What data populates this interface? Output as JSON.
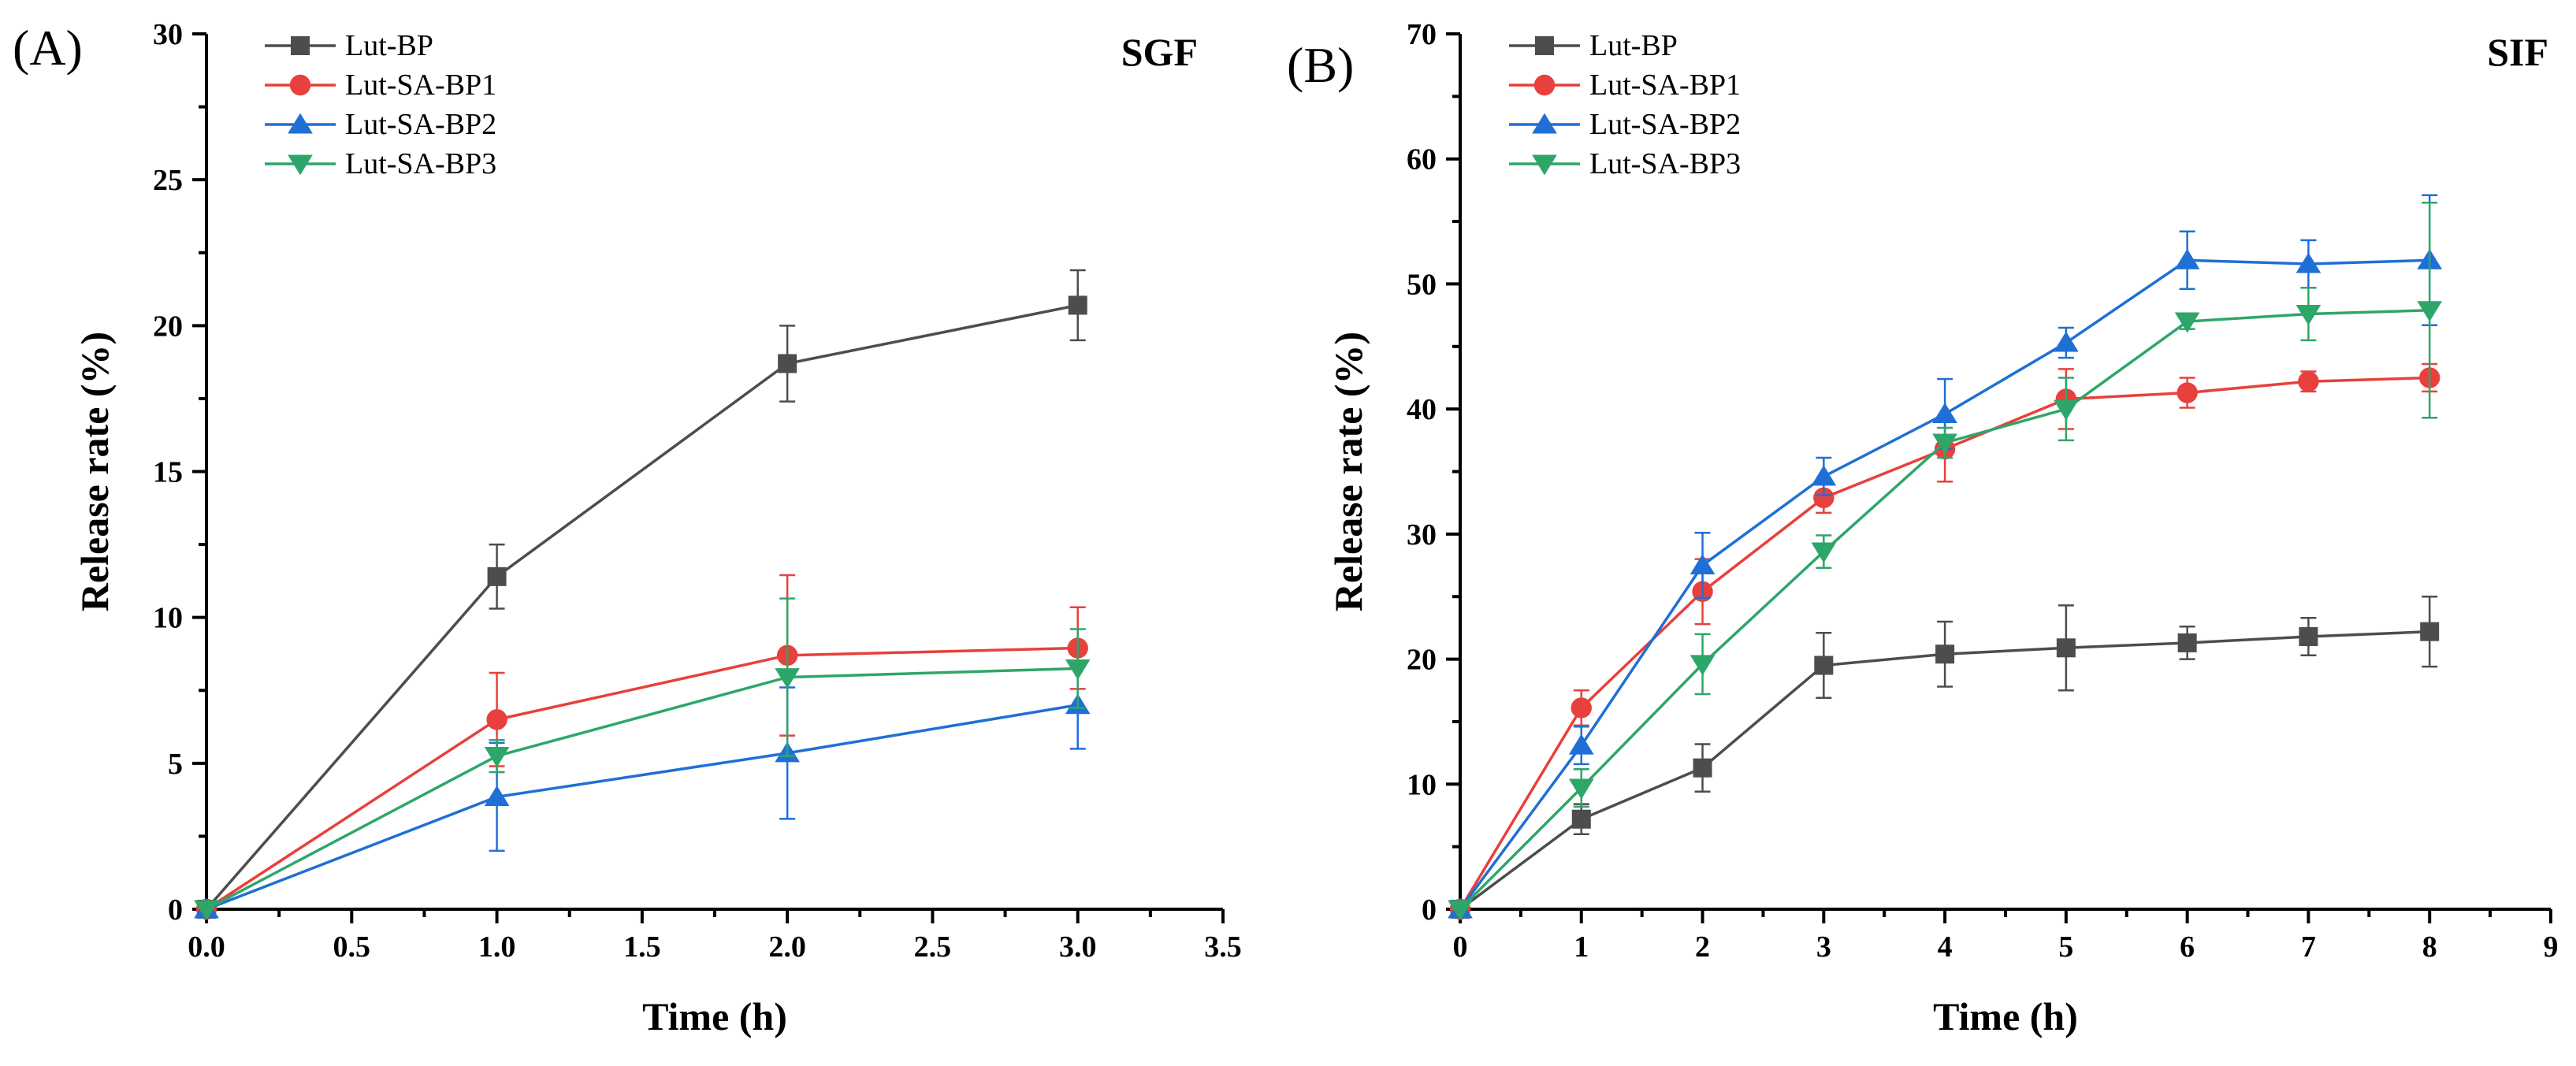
{
  "chart_data": [
    {
      "type": "line",
      "panel_label": "(A)",
      "condition": "SGF",
      "xlabel": "Time (h)",
      "ylabel": "Release rate (%)",
      "xlim": [
        0,
        3.5
      ],
      "ylim": [
        0,
        30
      ],
      "x_ticks": [
        "0.0",
        "0.5",
        "1.0",
        "1.5",
        "2.0",
        "2.5",
        "3.0",
        "3.5"
      ],
      "y_ticks": [
        "0",
        "5",
        "10",
        "15",
        "20",
        "25",
        "30"
      ],
      "legend_position": "top-left",
      "series": [
        {
          "name": "Lut-BP",
          "marker": "square",
          "color": "#4d4d4d",
          "x": [
            0,
            1,
            2,
            3
          ],
          "y": [
            0,
            11.4,
            18.7,
            20.7
          ],
          "err": [
            0,
            1.1,
            1.3,
            1.2
          ]
        },
        {
          "name": "Lut-SA-BP1",
          "marker": "circle",
          "color": "#e8403c",
          "x": [
            0,
            1,
            2,
            3
          ],
          "y": [
            0,
            6.5,
            8.7,
            8.95
          ],
          "err": [
            0,
            1.6,
            2.75,
            1.4
          ]
        },
        {
          "name": "Lut-SA-BP2",
          "marker": "triangle-up",
          "color": "#1f6fd6",
          "x": [
            0,
            1,
            2,
            3
          ],
          "y": [
            0,
            3.85,
            5.35,
            7.0
          ],
          "err": [
            0,
            1.85,
            2.25,
            1.5
          ]
        },
        {
          "name": "Lut-SA-BP3",
          "marker": "triangle-down",
          "color": "#2ea66a",
          "x": [
            0,
            1,
            2,
            3
          ],
          "y": [
            0,
            5.25,
            7.95,
            8.25
          ],
          "err": [
            0,
            0.55,
            2.7,
            1.35
          ]
        }
      ]
    },
    {
      "type": "line",
      "panel_label": "(B)",
      "condition": "SIF",
      "xlabel": "Time (h)",
      "ylabel": "Release rate (%)",
      "xlim": [
        0,
        9
      ],
      "ylim": [
        0,
        70
      ],
      "x_ticks": [
        "0",
        "1",
        "2",
        "3",
        "4",
        "5",
        "6",
        "7",
        "8",
        "9"
      ],
      "y_ticks": [
        "0",
        "10",
        "20",
        "30",
        "40",
        "50",
        "60",
        "70"
      ],
      "legend_position": "top-left",
      "series": [
        {
          "name": "Lut-BP",
          "marker": "square",
          "color": "#4d4d4d",
          "x": [
            0,
            1,
            2,
            3,
            4,
            5,
            6,
            7,
            8
          ],
          "y": [
            0,
            7.2,
            11.3,
            19.5,
            20.4,
            20.9,
            21.3,
            21.8,
            22.2
          ],
          "err": [
            0,
            1.2,
            1.9,
            2.6,
            2.6,
            3.4,
            1.3,
            1.5,
            2.8
          ]
        },
        {
          "name": "Lut-SA-BP1",
          "marker": "circle",
          "color": "#e8403c",
          "x": [
            0,
            1,
            2,
            3,
            4,
            5,
            6,
            7,
            8
          ],
          "y": [
            0,
            16.1,
            25.4,
            32.9,
            36.8,
            40.8,
            41.3,
            42.2,
            42.5
          ],
          "err": [
            0,
            1.4,
            2.6,
            1.2,
            2.6,
            2.4,
            1.2,
            0.8,
            1.1
          ]
        },
        {
          "name": "Lut-SA-BP2",
          "marker": "triangle-up",
          "color": "#1f6fd6",
          "x": [
            0,
            1,
            2,
            3,
            4,
            5,
            6,
            7,
            8
          ],
          "y": [
            0,
            13.1,
            27.5,
            34.6,
            39.6,
            45.3,
            51.9,
            51.6,
            51.9
          ],
          "err": [
            0,
            1.5,
            2.6,
            1.5,
            2.8,
            1.2,
            2.3,
            1.9,
            5.2
          ]
        },
        {
          "name": "Lut-SA-BP3",
          "marker": "triangle-down",
          "color": "#2ea66a",
          "x": [
            0,
            1,
            2,
            3,
            4,
            5,
            6,
            7,
            8
          ],
          "y": [
            0,
            9.7,
            19.6,
            28.6,
            37.3,
            40.0,
            47.0,
            47.6,
            47.9
          ],
          "err": [
            0,
            1.5,
            2.4,
            1.3,
            1.2,
            2.5,
            0.6,
            2.1,
            8.6
          ]
        }
      ]
    }
  ]
}
